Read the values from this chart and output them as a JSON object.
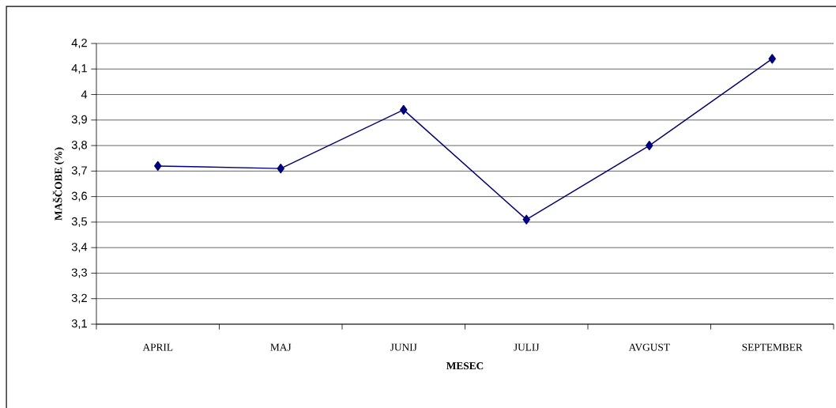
{
  "chart_data": {
    "type": "line",
    "xlabel": "MESEC",
    "ylabel": "MAŠČOBE (%)",
    "categories": [
      "APRIL",
      "MAJ",
      "JUNIJ",
      "JULIJ",
      "AVGUST",
      "SEPTEMBER"
    ],
    "series": [
      {
        "color": "#000080",
        "values": [
          3.72,
          3.71,
          3.94,
          3.51,
          3.8,
          4.14
        ]
      }
    ],
    "ylim": [
      3.1,
      4.2
    ],
    "yticks": [
      {
        "value": 3.1,
        "label": "3,1"
      },
      {
        "value": 3.2,
        "label": "3,2"
      },
      {
        "value": 3.3,
        "label": "3,3"
      },
      {
        "value": 3.4,
        "label": "3,4"
      },
      {
        "value": 3.5,
        "label": "3,5"
      },
      {
        "value": 3.6,
        "label": "3,6"
      },
      {
        "value": 3.7,
        "label": "3,7"
      },
      {
        "value": 3.8,
        "label": "3,8"
      },
      {
        "value": 3.9,
        "label": "3,9"
      },
      {
        "value": 4,
        "label": "4"
      },
      {
        "value": 4.1,
        "label": "4,1"
      },
      {
        "value": 4.2,
        "label": "4,2"
      }
    ],
    "grid": "y",
    "marker": "diamond",
    "line_style": "solid",
    "legend": false
  }
}
